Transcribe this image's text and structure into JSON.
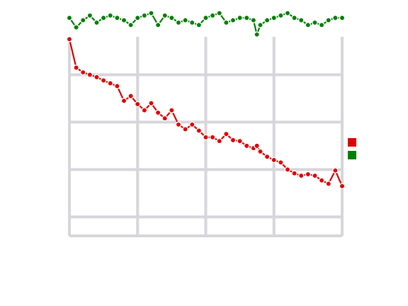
{
  "chart_data": {
    "type": "line",
    "title": "",
    "xlabel": "",
    "ylabel": "",
    "xlim": [
      0,
      40
    ],
    "ylim": [
      -0.79,
      -0.37
    ],
    "x_ticks": [
      0,
      10,
      20,
      30,
      40
    ],
    "x_tick_labels": [
      "",
      "",
      "",
      "",
      ""
    ],
    "y_ticks": [
      -0.75,
      -0.65,
      -0.55,
      -0.45,
      -0.35
    ],
    "y_tick_labels": [
      "",
      "",
      "",
      "",
      ""
    ],
    "grid": true,
    "legend": {
      "title": "",
      "placement": "right"
    },
    "x": [
      0,
      1,
      2,
      3,
      4,
      5,
      6,
      7,
      8,
      9,
      10,
      11,
      12,
      13,
      14,
      15,
      16,
      17,
      18,
      19,
      20,
      21,
      22,
      23,
      24,
      25,
      26,
      27,
      27.5,
      28,
      29,
      30,
      31,
      32,
      33,
      34,
      35,
      36,
      37,
      38,
      39,
      40
    ],
    "series": [
      {
        "name": "",
        "color": "#e00000",
        "values": [
          -0.375,
          -0.435,
          -0.445,
          -0.45,
          -0.455,
          -0.462,
          -0.468,
          -0.474,
          -0.505,
          -0.495,
          -0.512,
          -0.525,
          -0.51,
          -0.53,
          -0.542,
          -0.525,
          -0.555,
          -0.565,
          -0.555,
          -0.568,
          -0.582,
          -0.582,
          -0.59,
          -0.575,
          -0.588,
          -0.59,
          -0.6,
          -0.605,
          -0.6,
          -0.612,
          -0.623,
          -0.63,
          -0.635,
          -0.65,
          -0.658,
          -0.663,
          -0.66,
          -0.663,
          -0.673,
          -0.68,
          -0.652,
          -0.685
        ]
      },
      {
        "name": "",
        "color": "#008000",
        "values": [
          -0.33,
          -0.35,
          -0.335,
          -0.325,
          -0.34,
          -0.33,
          -0.325,
          -0.33,
          -0.335,
          -0.345,
          -0.33,
          -0.325,
          -0.32,
          -0.345,
          -0.325,
          -0.33,
          -0.34,
          -0.335,
          -0.34,
          -0.345,
          -0.33,
          -0.325,
          -0.32,
          -0.34,
          -0.335,
          -0.33,
          -0.33,
          -0.335,
          -0.365,
          -0.345,
          -0.335,
          -0.33,
          -0.325,
          -0.32,
          -0.33,
          -0.335,
          -0.345,
          -0.34,
          -0.345,
          -0.335,
          -0.33,
          -0.33
        ]
      }
    ]
  }
}
